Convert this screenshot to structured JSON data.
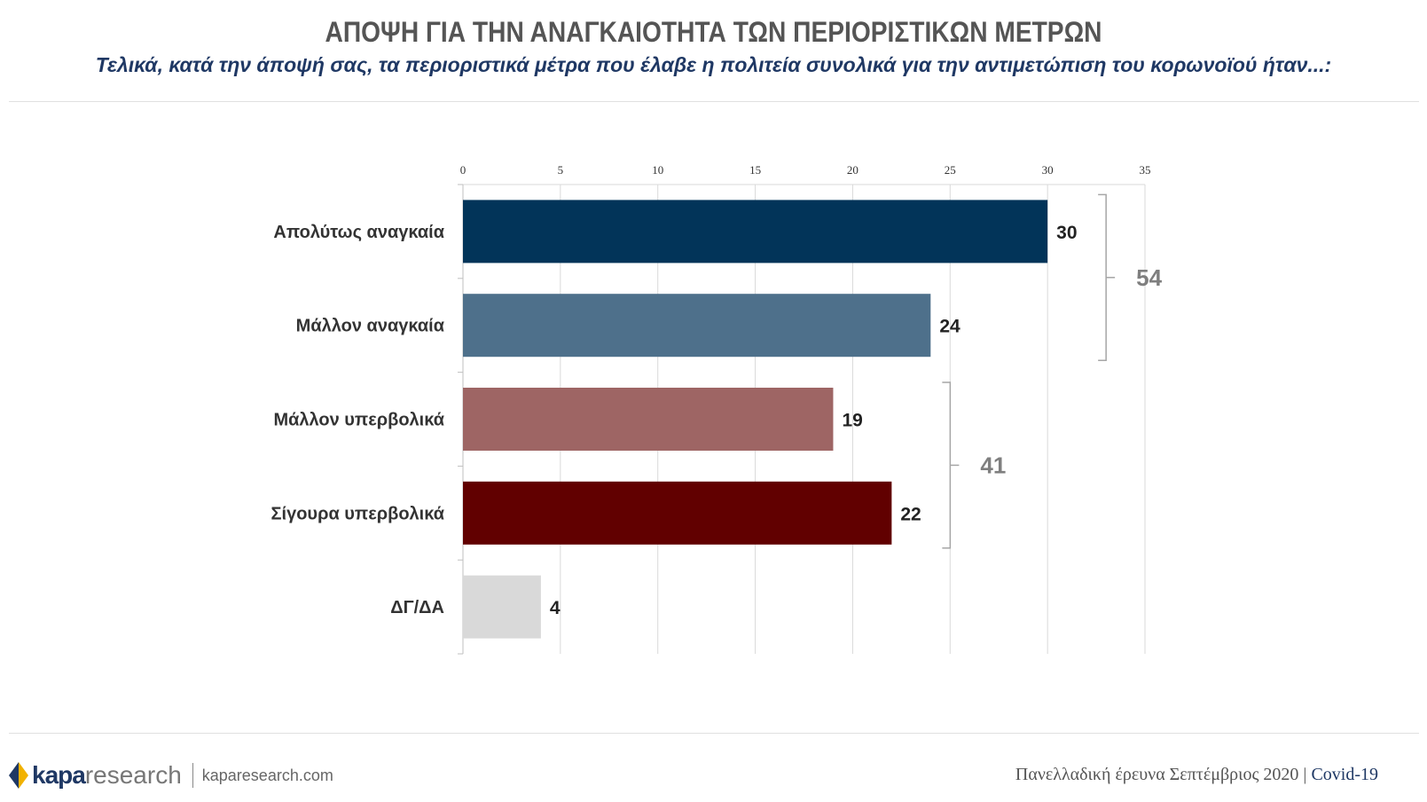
{
  "header": {
    "title": "ΑΠΟΨΗ ΓΙΑ ΤΗΝ ΑΝΑΓΚΑΙΟΤΗΤΑ ΤΩΝ ΠΕΡΙΟΡΙΣΤΙΚΩΝ ΜΕΤΡΩΝ",
    "subtitle": "Τελικά, κατά την άποψή σας, τα περιοριστικά μέτρα που έλαβε η πολιτεία συνολικά για την αντιμετώπιση του κορωνοϊού ήταν...:"
  },
  "chart_data": {
    "type": "bar",
    "orientation": "horizontal",
    "categories": [
      "Απολύτως αναγκαία",
      "Μάλλον αναγκαία",
      "Μάλλον υπερβολικά",
      "Σίγουρα υπερβολικά",
      "ΔΓ/ΔΑ"
    ],
    "values": [
      30,
      24,
      19,
      22,
      4
    ],
    "colors": [
      "#023459",
      "#4e708b",
      "#9e6564",
      "#610000",
      "#d9d9d9"
    ],
    "xlim": [
      0,
      35
    ],
    "ticks": [
      "0",
      "5",
      "10",
      "15",
      "20",
      "25",
      "30",
      "35"
    ],
    "axis_position": "top",
    "grid": true,
    "groups": [
      {
        "label": "54",
        "from": 0,
        "to": 1
      },
      {
        "label": "41",
        "from": 2,
        "to": 3
      }
    ]
  },
  "footer": {
    "brand_kapa": "kapa",
    "brand_research": "research",
    "site": "kaparesearch.com",
    "survey": "Πανελλαδική έρευνα Σεπτέμβριος 2020",
    "separator": "|",
    "topic": "Covid-19"
  }
}
